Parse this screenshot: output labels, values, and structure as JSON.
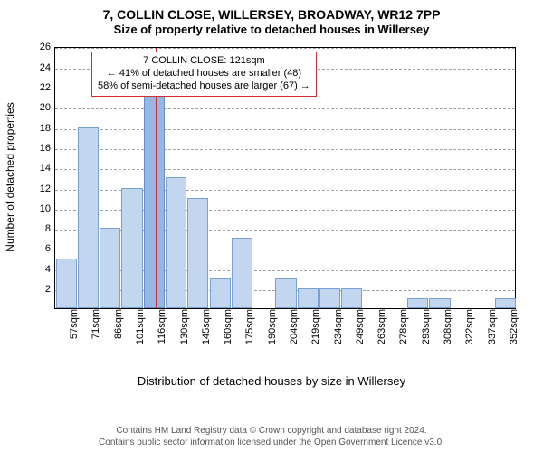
{
  "titles": {
    "line1": "7, COLLIN CLOSE, WILLERSEY, BROADWAY, WR12 7PP",
    "line2": "Size of property relative to detached houses in Willersey"
  },
  "axes": {
    "ylabel": "Number of detached properties",
    "xlabel": "Distribution of detached houses by size in Willersey",
    "ylim": [
      0,
      26
    ],
    "ytick_step": 2,
    "label_fontsize": 12,
    "tick_fontsize": 11,
    "label_color": "#000000",
    "grid_color": "#9aa1a8",
    "border_color": "#000000",
    "background_color": "#ffffff"
  },
  "chart": {
    "type": "histogram",
    "bar_fill": "#c2d6f0",
    "bar_border": "#7a9fd4",
    "highlight_fill": "#95b7e6",
    "highlight_border": "#6a8fc8",
    "bar_border_width": 1,
    "categories": [
      "57sqm",
      "71sqm",
      "86sqm",
      "101sqm",
      "116sqm",
      "130sqm",
      "145sqm",
      "160sqm",
      "175sqm",
      "190sqm",
      "204sqm",
      "219sqm",
      "234sqm",
      "249sqm",
      "263sqm",
      "278sqm",
      "293sqm",
      "308sqm",
      "322sqm",
      "337sqm",
      "352sqm"
    ],
    "values": [
      5,
      18,
      8,
      12,
      24,
      13,
      11,
      3,
      7,
      0,
      3,
      2,
      2,
      2,
      0,
      0,
      1,
      1,
      0,
      0,
      1
    ],
    "highlight_index": 4,
    "relative_bar_width": 0.95
  },
  "reference_line": {
    "color": "#d12f2f",
    "width": 2
  },
  "annotation": {
    "lines": [
      "7 COLLIN CLOSE: 121sqm",
      "← 41% of detached houses are smaller (48)",
      "58% of semi-detached houses are larger (67) →"
    ],
    "border_color": "#d12f2f",
    "background_color": "#ffffff",
    "fontsize": 11
  },
  "credits": {
    "line1": "Contains HM Land Registry data © Crown copyright and database right 2024.",
    "line2": "Contains public sector information licensed under the Open Government Licence v3.0.",
    "color": "#555555",
    "fontsize": 10
  },
  "title_style": {
    "fontsize_line1": 14,
    "fontsize_line2": 13,
    "color": "#000000",
    "weight": "bold"
  }
}
